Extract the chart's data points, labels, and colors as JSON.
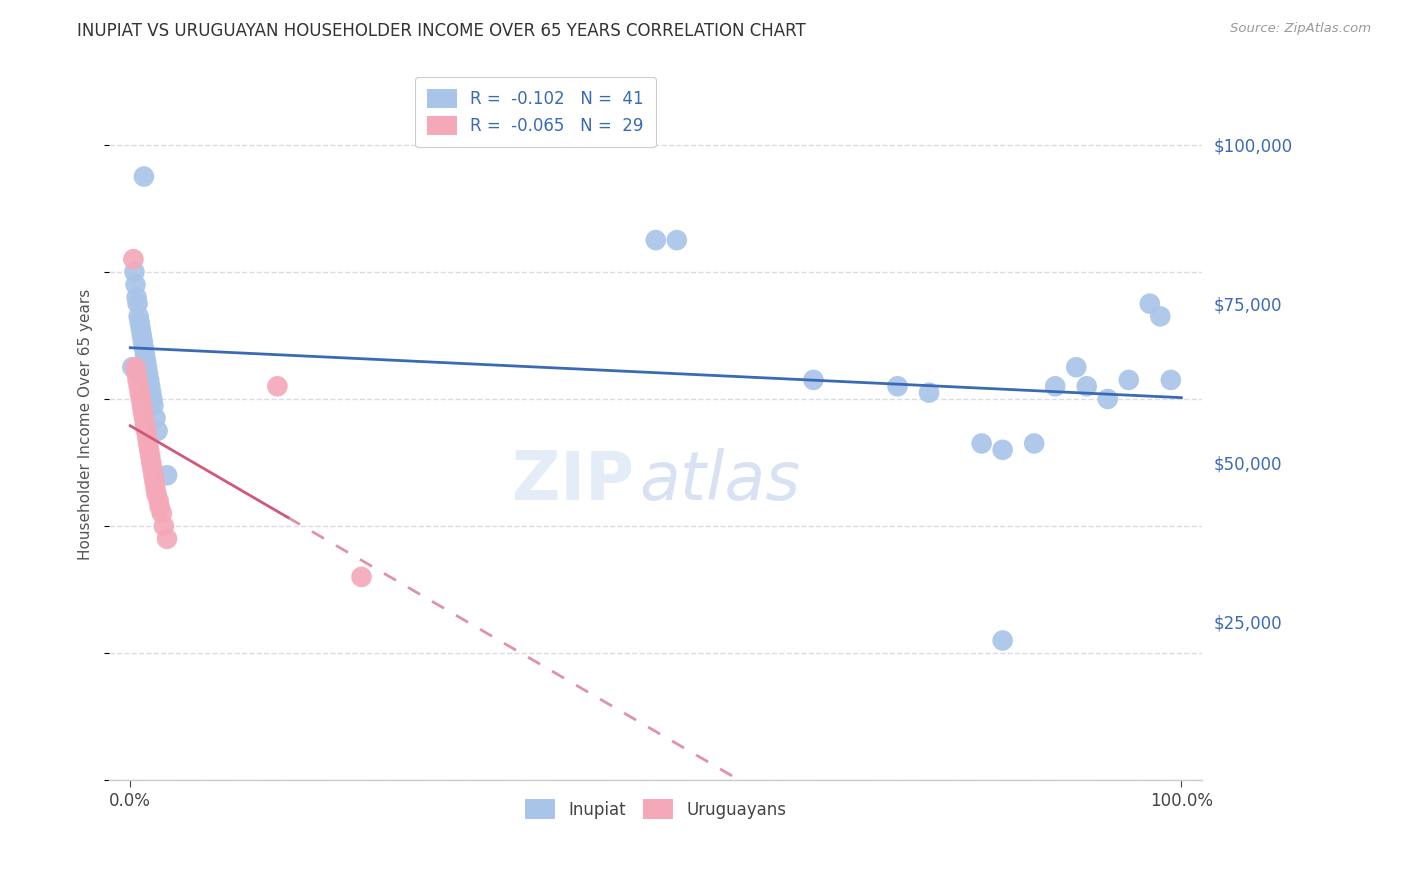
{
  "title": "INUPIAT VS URUGUAYAN HOUSEHOLDER INCOME OVER 65 YEARS CORRELATION CHART",
  "source": "Source: ZipAtlas.com",
  "ylabel": "Householder Income Over 65 years",
  "inupiat_color": "#a8c4e8",
  "uruguayan_color": "#f4a8b8",
  "inupiat_line_color": "#3b6ab5",
  "uruguayan_line_color": "#d05878",
  "background_color": "#ffffff",
  "grid_color": "#d8dce8",
  "watermark_text": "ZIP",
  "watermark_text2": "atlas",
  "tick_label_color": "#3b6ab5",
  "legend_r1": "R =",
  "legend_r1_val": "-0.102",
  "legend_n1": "N =",
  "legend_n1_val": "41",
  "legend_r2": "R =",
  "legend_r2_val": "-0.065",
  "legend_n2": "N =",
  "legend_n2_val": "29",
  "inupiat_x": [
    0.013,
    0.002,
    0.004,
    0.005,
    0.006,
    0.007,
    0.008,
    0.009,
    0.01,
    0.011,
    0.012,
    0.013,
    0.014,
    0.015,
    0.016,
    0.017,
    0.018,
    0.019,
    0.02,
    0.021,
    0.022,
    0.024,
    0.026,
    0.5,
    0.52,
    0.65,
    0.73,
    0.76,
    0.81,
    0.83,
    0.86,
    0.88,
    0.9,
    0.91,
    0.93,
    0.95,
    0.97,
    0.98,
    0.99,
    0.83,
    0.035
  ],
  "inupiat_y": [
    95000,
    65000,
    80000,
    78000,
    76000,
    75000,
    73000,
    72000,
    71000,
    70000,
    69000,
    68000,
    67000,
    66000,
    65000,
    64000,
    63000,
    62000,
    61000,
    60000,
    59000,
    57000,
    55000,
    85000,
    85000,
    63000,
    62000,
    61000,
    53000,
    52000,
    53000,
    62000,
    65000,
    62000,
    60000,
    63000,
    75000,
    73000,
    63000,
    22000,
    48000
  ],
  "uruguayan_x": [
    0.003,
    0.005,
    0.006,
    0.007,
    0.008,
    0.009,
    0.01,
    0.011,
    0.012,
    0.013,
    0.014,
    0.015,
    0.016,
    0.017,
    0.018,
    0.019,
    0.02,
    0.021,
    0.022,
    0.023,
    0.024,
    0.025,
    0.027,
    0.028,
    0.03,
    0.032,
    0.035,
    0.14,
    0.22
  ],
  "uruguayan_y": [
    82000,
    65000,
    64000,
    63000,
    62000,
    61000,
    60000,
    59000,
    58000,
    57000,
    56000,
    55000,
    54000,
    53000,
    52000,
    51000,
    50000,
    49000,
    48000,
    47000,
    46000,
    45000,
    44000,
    43000,
    42000,
    40000,
    38000,
    62000,
    32000
  ],
  "xlim_min": -0.02,
  "xlim_max": 1.02,
  "ylim_min": 0,
  "ylim_max": 112000,
  "yticks": [
    0,
    25000,
    50000,
    75000,
    100000
  ],
  "ytick_labels": [
    "",
    "$25,000",
    "$50,000",
    "$75,000",
    "$100,000"
  ]
}
